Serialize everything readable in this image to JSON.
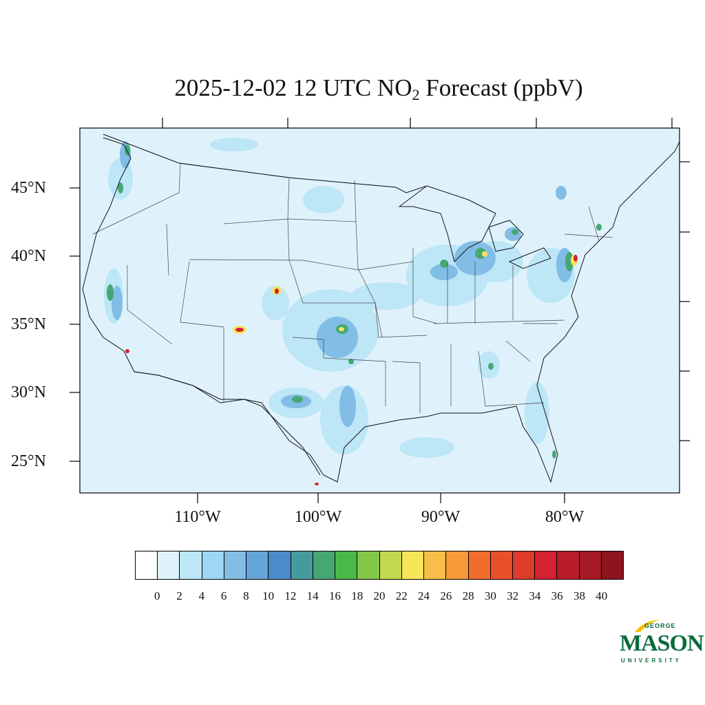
{
  "title": {
    "prefix": "2025-12-02 12 UTC NO",
    "subscript": "2",
    "suffix": " Forecast (ppbV)"
  },
  "lat_labels": [
    "45°N",
    "40°N",
    "35°N",
    "30°N",
    "25°N"
  ],
  "lon_labels": [
    "110°W",
    "100°W",
    "90°W",
    "80°W"
  ],
  "colorbar": {
    "labels": [
      "0",
      "2",
      "4",
      "6",
      "8",
      "10",
      "12",
      "14",
      "16",
      "18",
      "20",
      "22",
      "24",
      "26",
      "28",
      "30",
      "32",
      "34",
      "36",
      "38",
      "40"
    ],
    "colors": [
      "#ffffff",
      "#dff2fb",
      "#bde6f7",
      "#9dd7f3",
      "#82bde6",
      "#65a5da",
      "#4a8ccb",
      "#479a9c",
      "#45a872",
      "#4ab84a",
      "#85c54a",
      "#c3d84f",
      "#f8e55a",
      "#f7be4a",
      "#f69a3a",
      "#f26c2a",
      "#e8502a",
      "#de3b2b",
      "#d42230",
      "#b91c2a",
      "#a51925",
      "#8c1520"
    ]
  },
  "logo": {
    "george": "GEORGE",
    "mason": "MASON",
    "university": "UNIVERSITY"
  },
  "colors": {
    "background": "#dff2fb",
    "low": "#bde6f7",
    "mid": "#82bde6",
    "green": "#45a872",
    "yellow": "#f8e55a",
    "red": "#d42230"
  }
}
